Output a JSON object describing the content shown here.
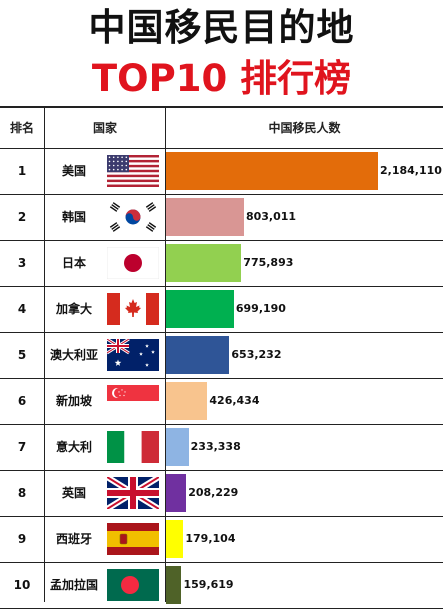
{
  "title_line1": "中国移民目的地",
  "title_line2": "TOP10 排行榜",
  "headers": {
    "rank": "排名",
    "country": "国家",
    "value": "中国移民人数"
  },
  "chart_data": {
    "type": "bar",
    "categories": [
      "美国",
      "韩国",
      "日本",
      "加拿大",
      "澳大利亚",
      "新加坡",
      "意大利",
      "英国",
      "西班牙",
      "孟加拉国"
    ],
    "ranks": [
      "1",
      "2",
      "3",
      "4",
      "5",
      "6",
      "7",
      "8",
      "9",
      "10"
    ],
    "values": [
      2184110,
      803011,
      775893,
      699190,
      653232,
      426434,
      233338,
      208229,
      179104,
      159619
    ],
    "value_labels": [
      "2,184,110",
      "803,011",
      "775,893",
      "699,190",
      "653,232",
      "426,434",
      "233,338",
      "208,229",
      "179,104",
      "159,619"
    ],
    "bar_colors": [
      "#e36c0a",
      "#d99694",
      "#92d050",
      "#00b050",
      "#2f5597",
      "#f8c48e",
      "#8eb4e3",
      "#7030a0",
      "#ffff00",
      "#4f6228"
    ],
    "flags": [
      "usa-flag-icon",
      "south-korea-flag-icon",
      "japan-flag-icon",
      "canada-flag-icon",
      "australia-flag-icon",
      "singapore-flag-icon",
      "italy-flag-icon",
      "uk-flag-icon",
      "spain-flag-icon",
      "bangladesh-flag-icon"
    ]
  }
}
